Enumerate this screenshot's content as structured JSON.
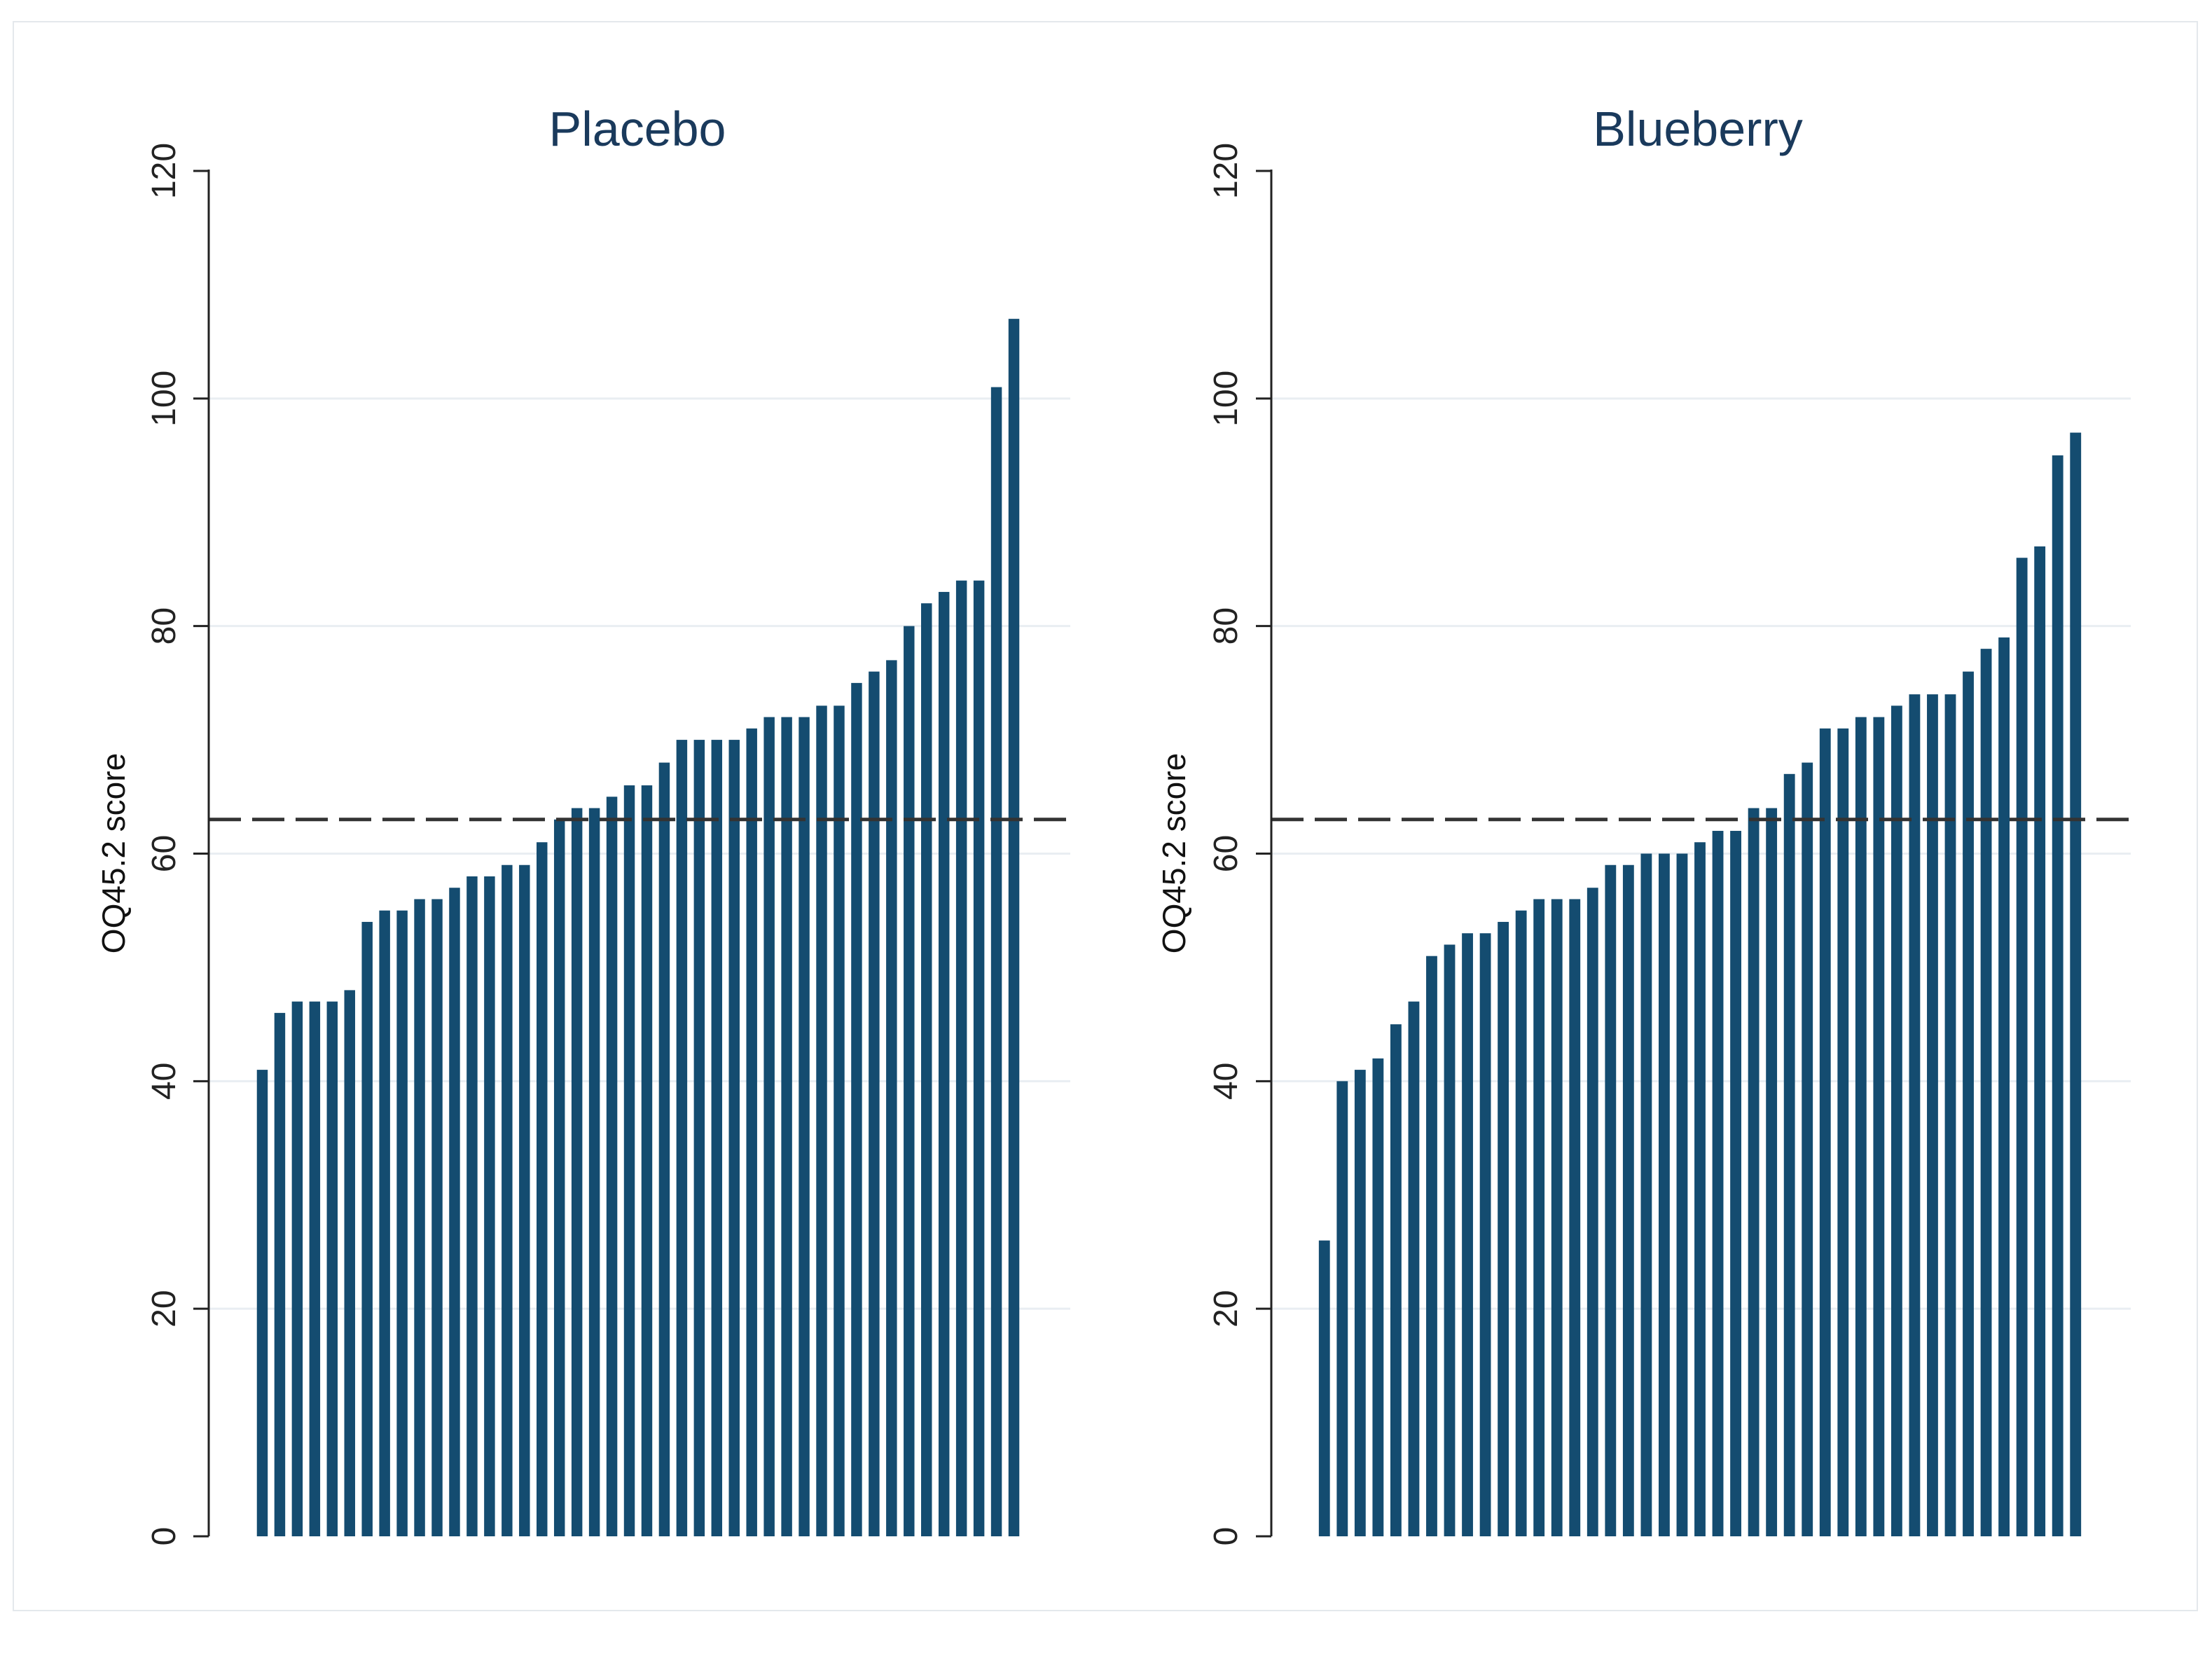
{
  "chart_data": [
    {
      "type": "bar",
      "title": "Placebo",
      "xlabel": "",
      "ylabel": "OQ45.2 score",
      "ylim": [
        0,
        120
      ],
      "yticks": [
        0,
        20,
        40,
        60,
        80,
        100,
        120
      ],
      "grid": true,
      "reference_line": 63,
      "bar_color": "#144c70",
      "values": [
        41,
        46,
        47,
        47,
        47,
        48,
        54,
        55,
        55,
        56,
        56,
        57,
        58,
        58,
        59,
        59,
        61,
        63,
        64,
        64,
        65,
        66,
        66,
        68,
        70,
        70,
        70,
        70,
        71,
        72,
        72,
        72,
        73,
        73,
        75,
        76,
        77,
        80,
        82,
        83,
        84,
        84,
        101,
        107
      ]
    },
    {
      "type": "bar",
      "title": "Blueberry",
      "xlabel": "",
      "ylabel": "OQ45.2 score",
      "ylim": [
        0,
        120
      ],
      "yticks": [
        0,
        20,
        40,
        60,
        80,
        100,
        120
      ],
      "grid": true,
      "reference_line": 63,
      "bar_color": "#144c70",
      "values": [
        26,
        40,
        41,
        42,
        45,
        47,
        51,
        52,
        53,
        53,
        54,
        55,
        56,
        56,
        56,
        57,
        59,
        59,
        60,
        60,
        60,
        61,
        62,
        62,
        64,
        64,
        67,
        68,
        71,
        71,
        72,
        72,
        73,
        74,
        74,
        74,
        76,
        78,
        79,
        86,
        87,
        95,
        97
      ]
    }
  ],
  "colors": {
    "bar": "#144c70",
    "axis": "#222222",
    "grid": "#e9eef2",
    "reference_line": "#333333",
    "title": "#1a3a5c"
  }
}
